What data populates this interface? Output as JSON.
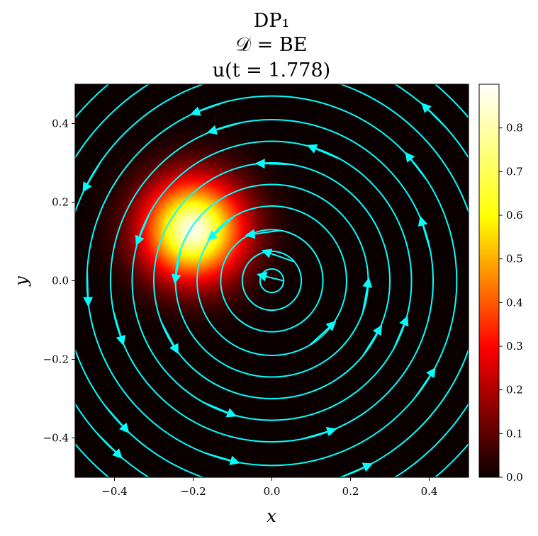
{
  "chart_data": {
    "type": "heatmap",
    "title_lines": [
      "DP₁",
      "𝒟 = BE",
      "u(t = 1.778)"
    ],
    "xlabel": "x",
    "ylabel": "y",
    "xlim": [
      -0.5,
      0.5
    ],
    "ylim": [
      -0.5,
      0.5
    ],
    "x_ticks": [
      {
        "value": -0.4,
        "label": "−0.4"
      },
      {
        "value": -0.2,
        "label": "−0.2"
      },
      {
        "value": 0.0,
        "label": "0.0"
      },
      {
        "value": 0.2,
        "label": "0.2"
      },
      {
        "value": 0.4,
        "label": "0.4"
      }
    ],
    "y_ticks": [
      {
        "value": 0.4,
        "label": "0.4"
      },
      {
        "value": 0.2,
        "label": "0.2"
      },
      {
        "value": 0.0,
        "label": "0.0"
      },
      {
        "value": -0.2,
        "label": "−0.2"
      },
      {
        "value": -0.4,
        "label": "−0.4"
      }
    ],
    "field": {
      "colormap": "hot",
      "vmin": 0.0,
      "vmax": 0.9,
      "peak_center": [
        -0.2,
        0.13
      ],
      "peak_value": 0.88,
      "blob_spread": 0.09
    },
    "colorbar": {
      "ticks": [
        {
          "value": 0.0,
          "label": "0.0"
        },
        {
          "value": 0.1,
          "label": "0.1"
        },
        {
          "value": 0.2,
          "label": "0.2"
        },
        {
          "value": 0.3,
          "label": "0.3"
        },
        {
          "value": 0.4,
          "label": "0.4"
        },
        {
          "value": 0.5,
          "label": "0.5"
        },
        {
          "value": 0.6,
          "label": "0.6"
        },
        {
          "value": 0.7,
          "label": "0.7"
        },
        {
          "value": 0.8,
          "label": "0.8"
        }
      ]
    },
    "streamlines": {
      "type": "counter-clockwise rotation about origin",
      "color": "#00ffff",
      "radii": [
        0.03,
        0.075,
        0.13,
        0.19,
        0.245,
        0.3,
        0.355,
        0.41,
        0.47,
        0.53,
        0.59,
        0.65
      ]
    }
  }
}
